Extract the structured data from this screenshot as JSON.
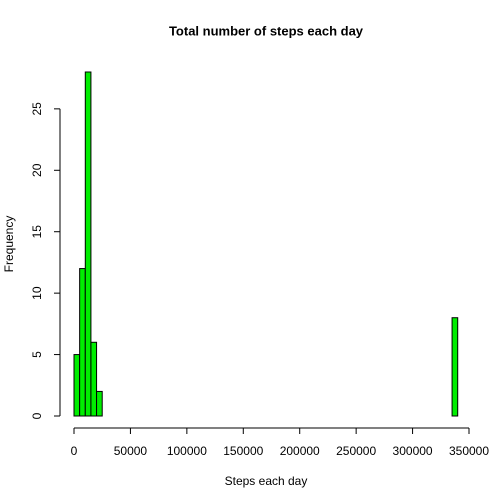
{
  "chart_data": {
    "type": "histogram",
    "title": "Total number of steps each day",
    "x_label": "Steps each day",
    "y_label": "Frequency",
    "bins": [
      0,
      5000,
      10000,
      15000,
      20000,
      25000,
      30000,
      35000,
      40000,
      45000,
      50000,
      55000,
      60000,
      65000,
      70000,
      75000,
      80000,
      85000,
      90000,
      95000,
      100000,
      105000,
      110000,
      115000,
      120000,
      125000,
      130000,
      135000,
      140000,
      145000,
      150000,
      155000,
      160000,
      165000,
      170000,
      175000,
      180000,
      185000,
      190000,
      195000,
      200000,
      205000,
      210000,
      215000,
      220000,
      225000,
      230000,
      235000,
      240000,
      245000,
      250000,
      255000,
      260000,
      265000,
      270000,
      275000,
      280000,
      285000,
      290000,
      295000,
      300000,
      305000,
      310000,
      315000,
      320000,
      325000,
      330000,
      335000,
      340000
    ],
    "counts": [
      5,
      12,
      28,
      6,
      2,
      0,
      0,
      0,
      0,
      0,
      0,
      0,
      0,
      0,
      0,
      0,
      0,
      0,
      0,
      0,
      0,
      0,
      0,
      0,
      0,
      0,
      0,
      0,
      0,
      0,
      0,
      0,
      0,
      0,
      0,
      0,
      0,
      0,
      0,
      0,
      0,
      0,
      0,
      0,
      0,
      0,
      0,
      0,
      0,
      0,
      0,
      0,
      0,
      0,
      0,
      0,
      0,
      0,
      0,
      0,
      0,
      0,
      0,
      0,
      0,
      0,
      0,
      8
    ],
    "color": "#00ee00",
    "xlim": [
      0,
      350000
    ],
    "ylim": [
      0,
      28
    ],
    "xticks": [
      0,
      50000,
      100000,
      150000,
      200000,
      250000,
      300000,
      350000
    ],
    "yticks": [
      0,
      5,
      10,
      15,
      20,
      25
    ]
  }
}
